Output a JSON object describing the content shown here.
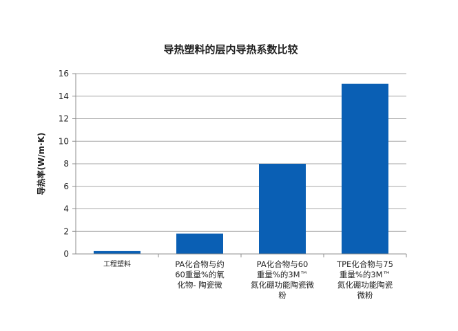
{
  "chart_data": {
    "type": "bar",
    "title": "导热塑料的层内导热系数比较",
    "ylabel": "导热率(W/m·K)",
    "xlabel": "",
    "ylim": [
      0,
      16
    ],
    "yticks": [
      0,
      2,
      4,
      6,
      8,
      10,
      12,
      14,
      16
    ],
    "grid": true,
    "categories": [
      "工程塑料",
      "PA化合物与约\n60重量%的氧\n化物- 陶瓷微",
      "PA化合物与60\n重量%的3M™\n氮化硼功能陶瓷微\n粉",
      "TPE化合物与75\n重量%的3M™\n氮化硼功能陶瓷\n微粉"
    ],
    "values": [
      0.25,
      1.8,
      8.0,
      15.1
    ],
    "bar_color": "#0a5fb4"
  }
}
